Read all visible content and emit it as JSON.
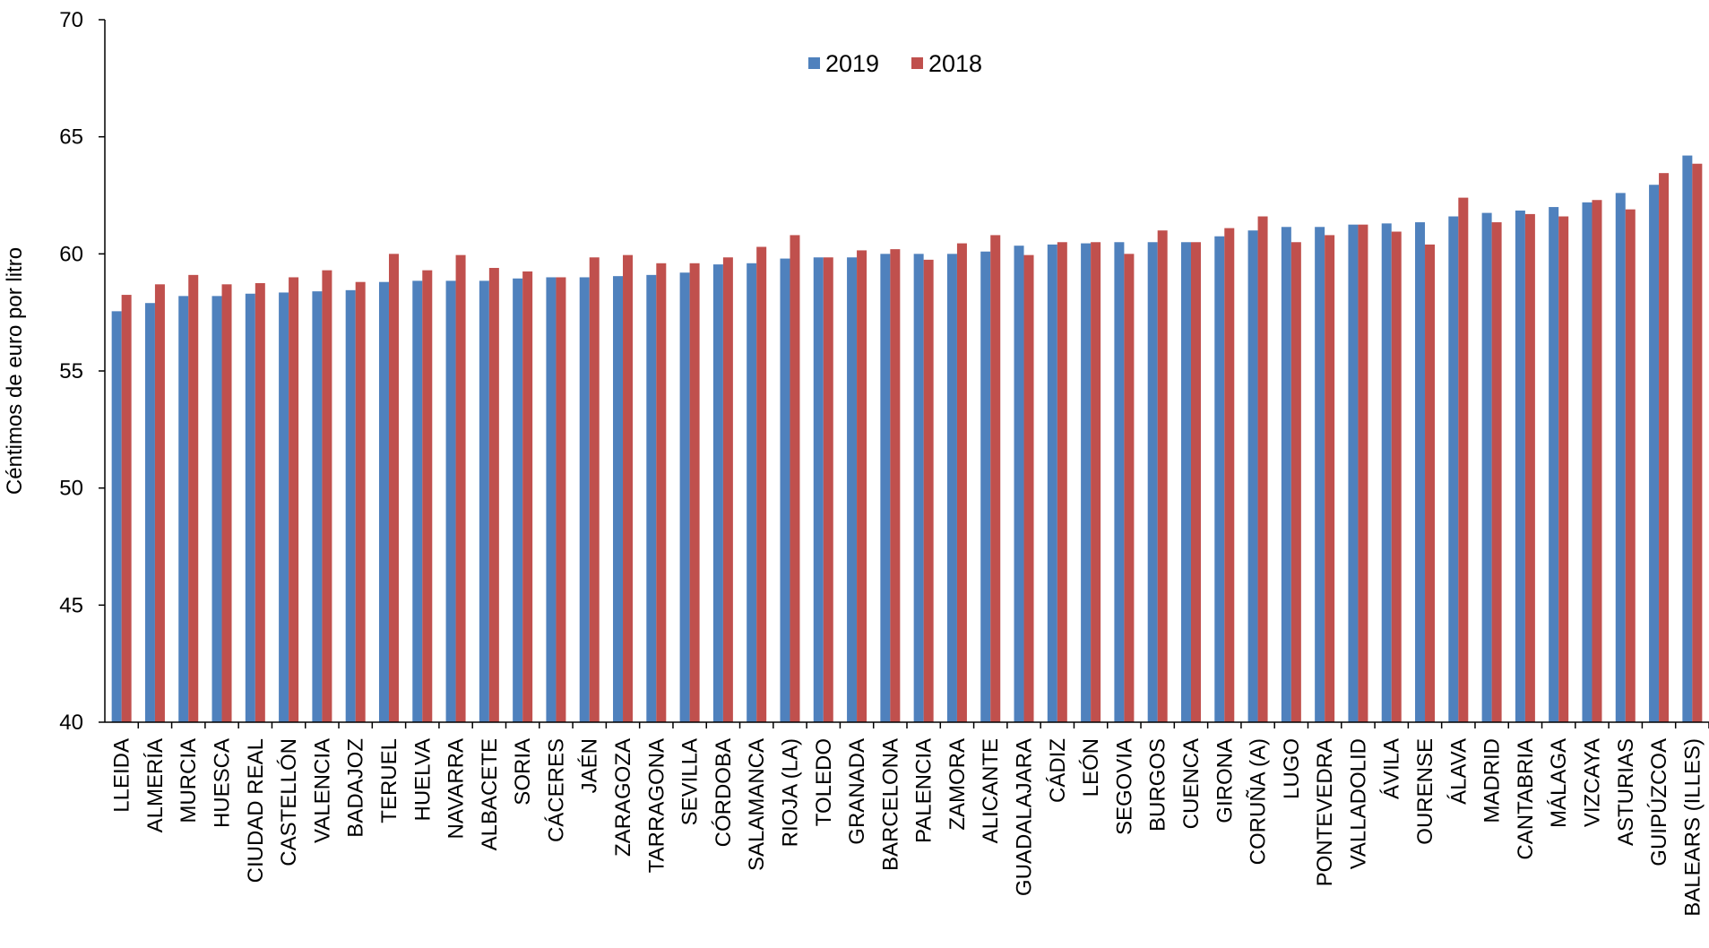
{
  "chart_data": {
    "type": "bar",
    "title": "",
    "xlabel": "",
    "ylabel": "Céntimos de euro por litro",
    "ylim": [
      40,
      70
    ],
    "yticks": [
      "40",
      "45",
      "50",
      "55",
      "60",
      "65",
      "70"
    ],
    "grid": false,
    "legend_position": "top-center",
    "categories": [
      "LLEIDA",
      "ALMERÍA",
      "MURCIA",
      "HUESCA",
      "CIUDAD REAL",
      "CASTELLÓN",
      "VALENCIA",
      "BADAJOZ",
      "TERUEL",
      "HUELVA",
      "NAVARRA",
      "ALBACETE",
      "SORIA",
      "CÁCERES",
      "JAÉN",
      "ZARAGOZA",
      "TARRAGONA",
      "SEVILLA",
      "CÓRDOBA",
      "SALAMANCA",
      "RIOJA (LA)",
      "TOLEDO",
      "GRANADA",
      "BARCELONA",
      "PALENCIA",
      "ZAMORA",
      "ALICANTE",
      "GUADALAJARA",
      "CÁDIZ",
      "LEÓN",
      "SEGOVIA",
      "BURGOS",
      "CUENCA",
      "GIRONA",
      "CORUÑA (A)",
      "LUGO",
      "PONTEVEDRA",
      "VALLADOLID",
      "ÁVILA",
      "OURENSE",
      "ÁLAVA",
      "MADRID",
      "CANTABRIA",
      "MÁLAGA",
      "VIZCAYA",
      "ASTURIAS",
      "GUIPÚZCOA",
      "BALEARS (ILLES)"
    ],
    "series": [
      {
        "name": "2019",
        "color": "#4f81bd",
        "values": [
          57.55,
          57.9,
          58.2,
          58.2,
          58.3,
          58.35,
          58.4,
          58.45,
          58.8,
          58.85,
          58.85,
          58.85,
          58.95,
          59.0,
          59.0,
          59.05,
          59.1,
          59.2,
          59.55,
          59.6,
          59.8,
          59.85,
          59.85,
          60.0,
          60.0,
          60.0,
          60.1,
          60.35,
          60.4,
          60.45,
          60.5,
          60.5,
          60.5,
          60.75,
          61.0,
          61.15,
          61.15,
          61.25,
          61.3,
          61.35,
          61.6,
          61.75,
          61.85,
          62.0,
          62.2,
          62.6,
          62.95,
          64.2
        ]
      },
      {
        "name": "2018",
        "color": "#c0504d",
        "values": [
          58.25,
          58.7,
          59.1,
          58.7,
          58.75,
          59.0,
          59.3,
          58.8,
          60.0,
          59.3,
          59.95,
          59.4,
          59.25,
          59.0,
          59.85,
          59.95,
          59.6,
          59.6,
          59.85,
          60.3,
          60.8,
          59.85,
          60.15,
          60.2,
          59.75,
          60.45,
          60.8,
          59.95,
          60.5,
          60.5,
          60.0,
          61.0,
          60.5,
          61.1,
          61.6,
          60.5,
          60.8,
          61.25,
          60.95,
          60.4,
          62.4,
          61.35,
          61.7,
          61.6,
          62.3,
          61.9,
          63.45,
          63.85
        ]
      }
    ]
  }
}
